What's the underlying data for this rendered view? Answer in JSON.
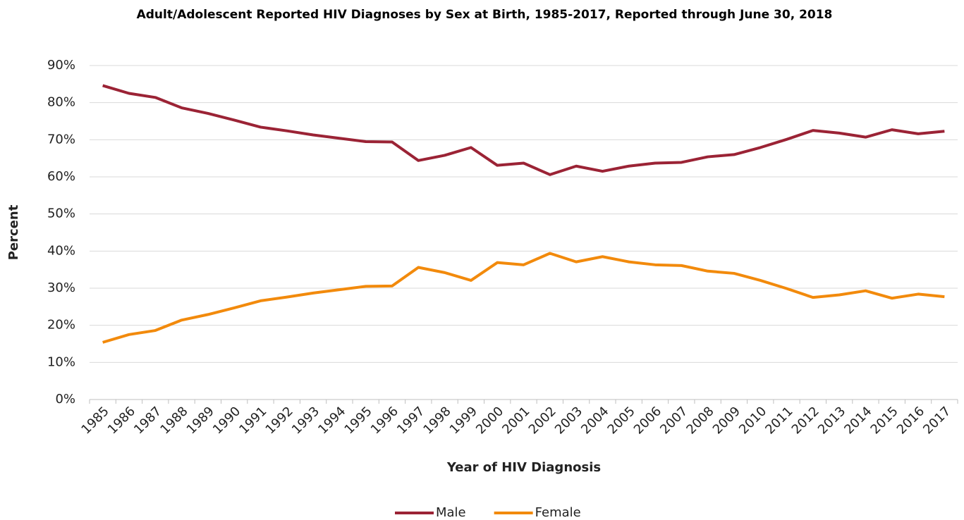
{
  "chart_data": {
    "type": "line",
    "title": "Adult/Adolescent Reported HIV Diagnoses by Sex at Birth, 1985-2017, Reported through June 30, 2018",
    "x_label": "Year of HIV Diagnosis",
    "y_label": "Percent",
    "categories": [
      "1985",
      "1986",
      "1987",
      "1988",
      "1989",
      "1990",
      "1991",
      "1992",
      "1993",
      "1994",
      "1995",
      "1996",
      "1997",
      "1998",
      "1999",
      "2000",
      "2001",
      "2002",
      "2003",
      "2004",
      "2005",
      "2006",
      "2007",
      "2008",
      "2009",
      "2010",
      "2011",
      "2012",
      "2013",
      "2014",
      "2015",
      "2016",
      "2017"
    ],
    "series": [
      {
        "name": "Male",
        "color": "#9b2335",
        "values": [
          84.6,
          82.5,
          81.4,
          78.6,
          77.1,
          75.3,
          73.4,
          72.4,
          71.3,
          70.4,
          69.5,
          69.4,
          64.4,
          65.8,
          67.9,
          63.1,
          63.7,
          60.6,
          62.9,
          61.5,
          62.9,
          63.7,
          63.9,
          65.4,
          66.0,
          67.9,
          70.1,
          72.5,
          71.8,
          70.7,
          72.7,
          71.6,
          72.3
        ]
      },
      {
        "name": "Female",
        "color": "#f28a0c",
        "values": [
          15.4,
          17.5,
          18.6,
          21.4,
          22.9,
          24.7,
          26.6,
          27.6,
          28.7,
          29.6,
          30.5,
          30.6,
          35.6,
          34.2,
          32.1,
          36.9,
          36.3,
          39.4,
          37.1,
          38.5,
          37.1,
          36.3,
          36.1,
          34.6,
          34.0,
          32.1,
          29.9,
          27.5,
          28.2,
          29.3,
          27.3,
          28.4,
          27.7
        ]
      }
    ],
    "ylim": [
      0,
      90
    ],
    "yticks": [
      {
        "value": 0,
        "label": "0%"
      },
      {
        "value": 10,
        "label": "10%"
      },
      {
        "value": 20,
        "label": "20%"
      },
      {
        "value": 30,
        "label": "30%"
      },
      {
        "value": 40,
        "label": "40%"
      },
      {
        "value": 50,
        "label": "50%"
      },
      {
        "value": 60,
        "label": "60%"
      },
      {
        "value": 70,
        "label": "70%"
      },
      {
        "value": 80,
        "label": "80%"
      },
      {
        "value": 90,
        "label": "90%"
      }
    ],
    "grid": true,
    "legend": "bottom"
  }
}
